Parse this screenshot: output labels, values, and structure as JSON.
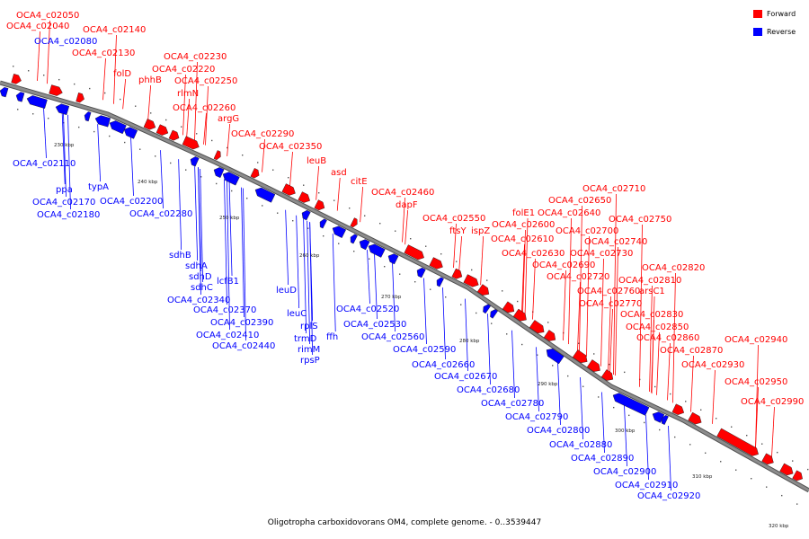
{
  "colors": {
    "forward": "#ff0000",
    "reverse": "#0000ff",
    "backbone": "#8c8c8c"
  },
  "legend": [
    {
      "label": "Forward",
      "color": "#ff0000"
    },
    {
      "label": "Reverse",
      "color": "#0000ff"
    }
  ],
  "caption": "Oligotropha carboxidovorans OM4, complete genome. - 0..3539447",
  "ticks": [
    "230 kbp",
    "240 kbp",
    "250 kbp",
    "260 kbp",
    "270 kbp",
    "280 kbp",
    "290 kbp",
    "300 kbp",
    "310 kbp",
    "320 kbp"
  ],
  "forward_genes": [
    "OCA4_c02050",
    "OCA4_c02040",
    "OCA4_c02140",
    "OCA4_c02130",
    "folD",
    "phhB",
    "OCA4_c02230",
    "OCA4_c02220",
    "OCA4_c02250",
    "rlmN",
    "OCA4_c02260",
    "argG",
    "OCA4_c02290",
    "OCA4_c02350",
    "leuB",
    "asd",
    "citE",
    "OCA4_c02460",
    "dapF",
    "OCA4_c02550",
    "ftsY",
    "ispZ",
    "folE1",
    "OCA4_c02600",
    "OCA4_c02610",
    "OCA4_c02630",
    "OCA4_c02640",
    "OCA4_c02650",
    "OCA4_c02710",
    "OCA4_c02700",
    "OCA4_c02690",
    "OCA4_c02720",
    "OCA4_c02730",
    "OCA4_c02740",
    "OCA4_c02750",
    "OCA4_c02760",
    "OCA4_c02770",
    "arsC1",
    "OCA4_c02810",
    "OCA4_c02820",
    "OCA4_c02830",
    "OCA4_c02850",
    "OCA4_c02860",
    "OCA4_c02870",
    "OCA4_c02930",
    "OCA4_c02940",
    "OCA4_c02950",
    "OCA4_c02990"
  ],
  "reverse_genes": [
    "OCA4_c02080",
    "OCA4_c02110",
    "ppa",
    "typA",
    "OCA4_c02170",
    "OCA4_c02180",
    "OCA4_c02200",
    "OCA4_c02280",
    "sdhB",
    "sdhA",
    "sdhD",
    "sdhC",
    "lcfB1",
    "OCA4_c02340",
    "OCA4_c02370",
    "OCA4_c02390",
    "OCA4_c02410",
    "OCA4_c02440",
    "leuD",
    "leuC",
    "rplS",
    "trmD",
    "rimM",
    "rpsP",
    "OCA4_c02520",
    "OCA4_c02530",
    "ffh",
    "OCA4_c02560",
    "OCA4_c02590",
    "OCA4_c02660",
    "OCA4_c02670",
    "OCA4_c02680",
    "OCA4_c02780",
    "OCA4_c02790",
    "OCA4_c02800",
    "OCA4_c02880",
    "OCA4_c02890",
    "OCA4_c02900",
    "OCA4_c02910",
    "OCA4_c02920"
  ]
}
